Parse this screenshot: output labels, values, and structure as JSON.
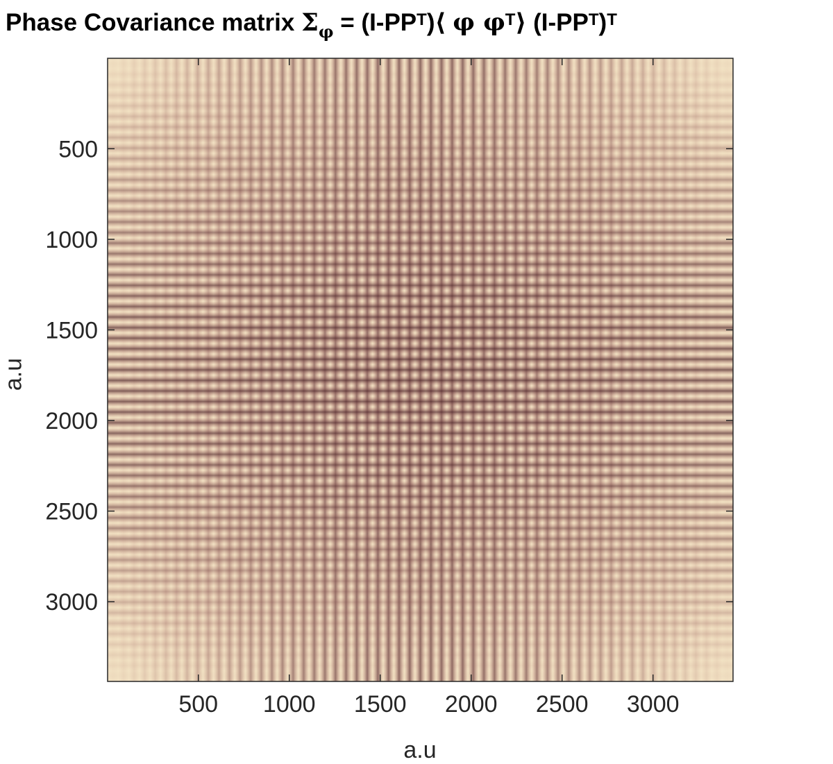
{
  "title": {
    "prefix": "Phase Covariance matrix ",
    "sigma": "Σ",
    "sigma_sub": "φ",
    "eq1": " = (I-PP",
    "sup1": "T",
    "bracket_open": ")⟨ ",
    "phi1": "φ",
    "phi2": " φ",
    "sup2": "T",
    "bracket_close": "⟩ (I-PP",
    "sup3": "T",
    "close_paren": ")",
    "sup4": "T"
  },
  "chart_data": {
    "type": "heatmap",
    "title": "Phase Covariance matrix Σ_φ = (I-PP^T)⟨ φ φ^T⟩ (I-PP^T)^T",
    "xlabel": "a.u",
    "ylabel": "a.u",
    "xlim": [
      1,
      3440
    ],
    "ylim": [
      1,
      3440
    ],
    "y_direction": "reversed",
    "x_ticks": [
      500,
      1000,
      1500,
      2000,
      2500,
      3000
    ],
    "y_ticks": [
      500,
      1000,
      1500,
      2000,
      2500,
      3000
    ],
    "x_tick_labels": [
      "500",
      "1000",
      "1500",
      "2000",
      "2500",
      "3000"
    ],
    "y_tick_labels": [
      "500",
      "1000",
      "1500",
      "2000",
      "2500",
      "3000"
    ],
    "pattern": "separable periodic checkerboard, period ~58 a.u., darkest at center, fading to pale at edges",
    "colormap": [
      "#fcfbd6",
      "#ecc79b",
      "#cf8d83",
      "#9a5a5c",
      "#4a2227"
    ],
    "grid": false,
    "colorbar": false
  }
}
